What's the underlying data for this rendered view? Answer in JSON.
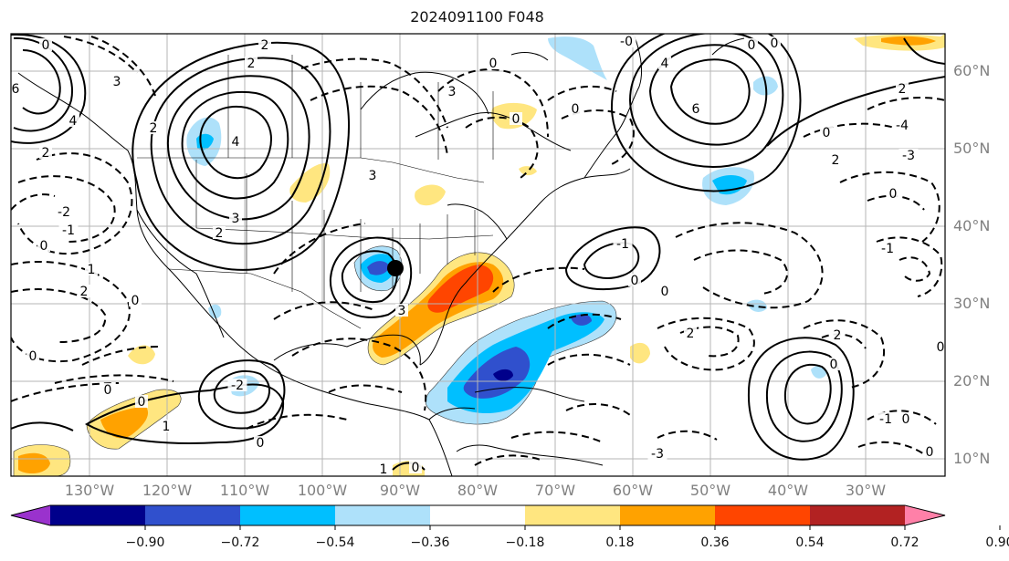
{
  "title": "2024091100 F048",
  "lat_labels": [
    "60°N",
    "50°N",
    "40°N",
    "30°N",
    "20°N",
    "10°N"
  ],
  "lon_labels": [
    "130°W",
    "120°W",
    "110°W",
    "100°W",
    "90°W",
    "80°W",
    "70°W",
    "60°W",
    "50°W",
    "40°W",
    "30°W"
  ],
  "colorbar": {
    "ticks": [
      "−0.90",
      "−0.72",
      "−0.54",
      "−0.36",
      "−0.18",
      "0.18",
      "0.36",
      "0.54",
      "0.72",
      "0.90"
    ],
    "colors": [
      "#9a32cd",
      "#00008b",
      "#3050cd",
      "#00bfff",
      "#aee1fa",
      "#ffffff",
      "#ffe680",
      "#ffa200",
      "#ff4500",
      "#b22222",
      "#ff80a8"
    ]
  },
  "contour_labels": [
    {
      "text": "0",
      "tx": 50,
      "ty": 52
    },
    {
      "text": "6",
      "tx": 17,
      "ty": 100
    },
    {
      "text": "4",
      "tx": 80,
      "ty": 135
    },
    {
      "text": "2",
      "tx": 290,
      "ty": 52
    },
    {
      "text": "2",
      "tx": 275,
      "ty": 72
    },
    {
      "text": "3",
      "tx": 128,
      "ty": 92
    },
    {
      "text": "2",
      "tx": 168,
      "ty": 143
    },
    {
      "text": "2",
      "tx": 50,
      "ty": 170
    },
    {
      "text": "4",
      "tx": 258,
      "ty": 158
    },
    {
      "text": "3",
      "tx": 258,
      "ty": 242
    },
    {
      "text": "2",
      "tx": 240,
      "ty": 258
    },
    {
      "text": "-2",
      "tx": 70,
      "ty": 235
    },
    {
      "text": "-1",
      "tx": 75,
      "ty": 255
    },
    {
      "text": "0",
      "tx": 48,
      "ty": 272
    },
    {
      "text": "1",
      "tx": 100,
      "ty": 298
    },
    {
      "text": "2",
      "tx": 92,
      "ty": 322
    },
    {
      "text": "0",
      "tx": 148,
      "ty": 332
    },
    {
      "text": "0",
      "tx": 36,
      "ty": 393
    },
    {
      "text": "0",
      "tx": 118,
      "ty": 430
    },
    {
      "text": "0",
      "tx": 155,
      "ty": 443
    },
    {
      "text": "1",
      "tx": 182,
      "ty": 470
    },
    {
      "text": "-2",
      "tx": 260,
      "ty": 425
    },
    {
      "text": "0",
      "tx": 285,
      "ty": 488
    },
    {
      "text": "3",
      "tx": 440,
      "ty": 343
    },
    {
      "text": "0",
      "tx": 455,
      "ty": 515
    },
    {
      "text": "1",
      "tx": 420,
      "ty": 517
    },
    {
      "text": "-1",
      "tx": 682,
      "ty": 270
    },
    {
      "text": "0",
      "tx": 695,
      "ty": 310
    },
    {
      "text": "0",
      "tx": 728,
      "ty": 322
    },
    {
      "text": "2",
      "tx": 756,
      "ty": 368
    },
    {
      "text": "-0",
      "tx": 686,
      "ty": 48
    },
    {
      "text": "4",
      "tx": 728,
      "ty": 72
    },
    {
      "text": "6",
      "tx": 762,
      "ty": 122
    },
    {
      "text": "0",
      "tx": 823,
      "ty": 52
    },
    {
      "text": "0",
      "tx": 848,
      "ty": 50
    },
    {
      "text": "0",
      "tx": 905,
      "ty": 148
    },
    {
      "text": "2",
      "tx": 915,
      "ty": 178
    },
    {
      "text": "-3",
      "tx": 995,
      "ty": 173
    },
    {
      "text": "-4",
      "tx": 988,
      "ty": 140
    },
    {
      "text": "2",
      "tx": 988,
      "ty": 100
    },
    {
      "text": "0",
      "tx": 978,
      "ty": 215
    },
    {
      "text": "-1",
      "tx": 972,
      "ty": 275
    },
    {
      "text": "0",
      "tx": 913,
      "ty": 402
    },
    {
      "text": "2",
      "tx": 917,
      "ty": 370
    },
    {
      "text": "-1",
      "tx": 970,
      "ty": 462
    },
    {
      "text": "0",
      "tx": 992,
      "ty": 462
    },
    {
      "text": "0",
      "tx": 1018,
      "ty": 498
    },
    {
      "text": "0",
      "tx": 1030,
      "ty": 383
    },
    {
      "text": "0",
      "tx": 630,
      "ty": 122
    },
    {
      "text": "3",
      "tx": 408,
      "ty": 195
    },
    {
      "text": "3",
      "tx": 495,
      "ty": 103
    },
    {
      "text": "0",
      "tx": 565,
      "ty": 133
    },
    {
      "text": "0",
      "tx": 540,
      "ty": 72
    },
    {
      "text": "-3",
      "tx": 720,
      "ty": 500
    }
  ]
}
